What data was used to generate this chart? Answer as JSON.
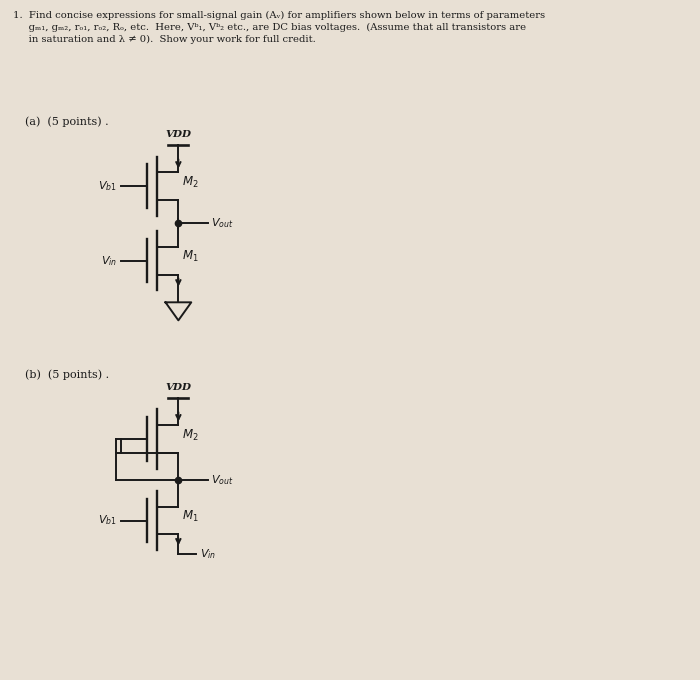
{
  "bg_color": "#e8e0d4",
  "text_color": "#1a1a1a",
  "fig_width": 7.0,
  "fig_height": 6.8,
  "line_color": "#1a1a1a",
  "line_width": 1.4,
  "header": "1.  Find concise expressions for small-signal gain (Aᵥ) for amplifiers shown below in terms of parameters\n     gₘ₁, gₘ₂, rₒ₁, rₒ₂, Rₒ, etc.  Here, Vᵇ₁, Vᵇ₂ etc., are DC bias voltages.  (Assume that all transistors are\n     in saturation and λ ≠ 0).  Show your work for full credit.",
  "part_a": "(a)  (5 points) .",
  "part_b": "(b)  (5 points) ."
}
